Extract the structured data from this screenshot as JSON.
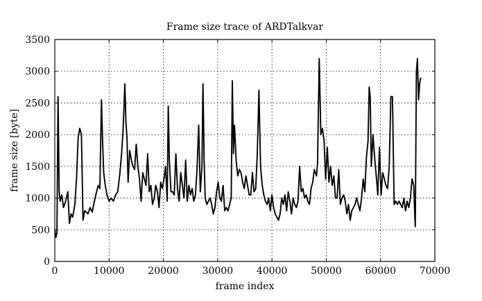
{
  "chart_data": {
    "type": "line",
    "title": "Frame size trace of ARDTalkvar",
    "xlabel": "frame index",
    "ylabel": "frame size [byte]",
    "xlim": [
      0,
      70000
    ],
    "ylim": [
      0,
      3500
    ],
    "x_ticks": [
      0,
      10000,
      20000,
      30000,
      40000,
      50000,
      60000,
      70000
    ],
    "y_ticks": [
      0,
      500,
      1000,
      1500,
      2000,
      2500,
      3000,
      3500
    ],
    "grid": true,
    "legend": "none",
    "series": [
      {
        "x": [
          0,
          200,
          400,
          600,
          800,
          1000,
          1300,
          1600,
          2000,
          2400,
          2700,
          3000,
          3300,
          3700,
          4000,
          4300,
          4600,
          4900,
          5200,
          5500,
          5800,
          6100,
          6500,
          6900,
          7300,
          7700,
          8000,
          8300,
          8600,
          8800,
          9000,
          9300,
          9600,
          10000,
          10400,
          10800,
          11200,
          11600,
          12000,
          12300,
          12600,
          12900,
          13100,
          13300,
          13500,
          13800,
          14100,
          14400,
          14700,
          15000,
          15300,
          15600,
          15900,
          16200,
          16500,
          16800,
          17100,
          17400,
          17700,
          18000,
          18300,
          18600,
          18900,
          19200,
          19500,
          19800,
          20100,
          20400,
          20700,
          20900,
          21100,
          21400,
          21700,
          22000,
          22300,
          22600,
          22900,
          23200,
          23500,
          23800,
          24100,
          24400,
          24700,
          25000,
          25300,
          25600,
          25900,
          26200,
          26500,
          26800,
          27100,
          27300,
          27500,
          27700,
          28000,
          28300,
          28600,
          28900,
          29200,
          29500,
          29800,
          30100,
          30400,
          30700,
          31000,
          31300,
          31600,
          31900,
          32200,
          32500,
          32700,
          32900,
          33100,
          33400,
          33700,
          34000,
          34300,
          34600,
          34900,
          35200,
          35500,
          35800,
          36100,
          36400,
          36700,
          37000,
          37300,
          37600,
          37900,
          38200,
          38500,
          38800,
          39100,
          39400,
          39700,
          40000,
          40300,
          40600,
          40900,
          41200,
          41500,
          41800,
          42100,
          42400,
          42700,
          43000,
          43300,
          43600,
          43900,
          44200,
          44500,
          44800,
          45100,
          45400,
          45700,
          46000,
          46300,
          46600,
          46900,
          47200,
          47500,
          47800,
          48000,
          48200,
          48400,
          48700,
          49000,
          49300,
          49600,
          49900,
          50200,
          50500,
          50800,
          51100,
          51400,
          51700,
          52000,
          52300,
          52600,
          52900,
          53200,
          53500,
          53800,
          54100,
          54400,
          54700,
          55000,
          55300,
          55600,
          55900,
          56200,
          56500,
          56800,
          57100,
          57400,
          57700,
          57900,
          58100,
          58300,
          58600,
          58900,
          59200,
          59500,
          59800,
          60100,
          60400,
          60700,
          61000,
          61300,
          61600,
          61900,
          62200,
          62500,
          62800,
          63100,
          63400,
          63700,
          64000,
          64300,
          64600,
          64900,
          65200,
          65500,
          65800,
          66100,
          66400,
          66600,
          66800,
          67000,
          67200,
          67400
        ],
        "values": [
          500,
          380,
          450,
          2600,
          1100,
          950,
          1050,
          850,
          950,
          1100,
          600,
          750,
          700,
          900,
          1300,
          1950,
          2100,
          2000,
          650,
          800,
          780,
          750,
          850,
          780,
          950,
          1100,
          1200,
          1150,
          2550,
          1900,
          1400,
          1200,
          1050,
          950,
          1000,
          950,
          1050,
          1100,
          1400,
          1700,
          2100,
          2800,
          2200,
          1950,
          1250,
          1750,
          1600,
          1500,
          1450,
          1850,
          1500,
          1300,
          950,
          1400,
          1300,
          1200,
          1700,
          1100,
          1200,
          900,
          1000,
          1200,
          1100,
          850,
          1250,
          1150,
          1300,
          1500,
          950,
          2450,
          1600,
          1100,
          1100,
          1050,
          1700,
          1150,
          950,
          1400,
          1200,
          1000,
          1600,
          950,
          1200,
          1050,
          1150,
          950,
          1050,
          1450,
          2150,
          1100,
          1500,
          2800,
          1600,
          1000,
          900,
          950,
          1000,
          900,
          750,
          850,
          1100,
          1250,
          1000,
          950,
          1200,
          800,
          850,
          800,
          900,
          1000,
          2850,
          1700,
          2150,
          1600,
          1350,
          1450,
          1400,
          1250,
          1150,
          1350,
          1200,
          1050,
          1050,
          1400,
          1100,
          1150,
          1700,
          2700,
          1500,
          1200,
          1050,
          950,
          900,
          1000,
          800,
          1050,
          850,
          750,
          700,
          650,
          750,
          1000,
          900,
          1050,
          800,
          1100,
          950,
          750,
          1000,
          900,
          850,
          950,
          1500,
          1100,
          1150,
          1000,
          1050,
          950,
          900,
          1150,
          1250,
          1450,
          1400,
          1350,
          1550,
          3200,
          2000,
          2100,
          1900,
          1300,
          1800,
          1250,
          1500,
          1200,
          1350,
          1000,
          1000,
          1450,
          900,
          1000,
          1050,
          950,
          750,
          900,
          650,
          800,
          850,
          900,
          1000,
          900,
          800,
          1000,
          1300,
          1100,
          1650,
          1900,
          2750,
          2600,
          1500,
          2000,
          1650,
          1350,
          1050,
          1800,
          1050,
          1400,
          1300,
          1200,
          1150,
          1500,
          2600,
          2600,
          900,
          950,
          900,
          950,
          900,
          850,
          1000,
          800,
          950,
          850,
          1000,
          1300,
          1200,
          550,
          3000,
          3200,
          2550,
          2800,
          2900
        ]
      }
    ]
  }
}
